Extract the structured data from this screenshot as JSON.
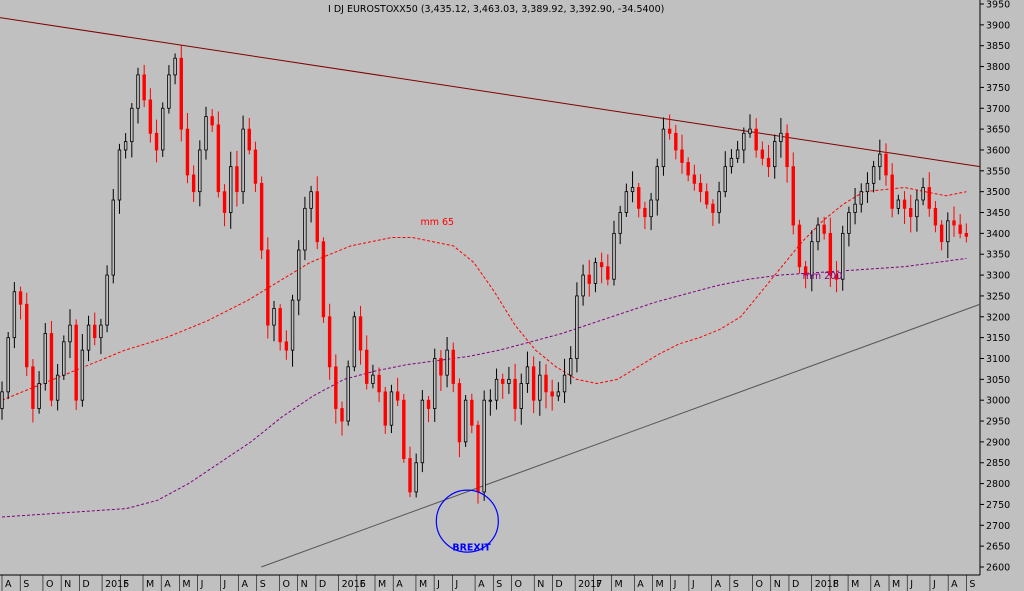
{
  "chart_data": {
    "type": "candlestick",
    "title": "I DJ EUROSTOXX50 (3,435.12, 3,463.03, 3,389.92, 3,392.90, -34.5400)",
    "ylim": [
      2600,
      3950
    ],
    "y_ticks": [
      2600,
      2650,
      2700,
      2750,
      2800,
      2850,
      2900,
      2950,
      3000,
      3050,
      3100,
      3150,
      3200,
      3250,
      3300,
      3350,
      3400,
      3450,
      3500,
      3550,
      3600,
      3650,
      3700,
      3750,
      3800,
      3850,
      3900,
      3950
    ],
    "x_ticks": [
      {
        "label": "A",
        "index": 0
      },
      {
        "label": "S",
        "index": 4
      },
      {
        "label": "O",
        "index": 9
      },
      {
        "label": "N",
        "index": 13
      },
      {
        "label": "D",
        "index": 17
      },
      {
        "label": "2015",
        "index": 22
      },
      {
        "label": "F",
        "index": 26
      },
      {
        "label": "M",
        "index": 31
      },
      {
        "label": "A",
        "index": 35
      },
      {
        "label": "M",
        "index": 39
      },
      {
        "label": "J",
        "index": 43
      },
      {
        "label": "J",
        "index": 48
      },
      {
        "label": "A",
        "index": 52
      },
      {
        "label": "S",
        "index": 56
      },
      {
        "label": "O",
        "index": 61
      },
      {
        "label": "N",
        "index": 65
      },
      {
        "label": "D",
        "index": 69
      },
      {
        "label": "2016",
        "index": 74
      },
      {
        "label": "F",
        "index": 78
      },
      {
        "label": "M",
        "index": 82
      },
      {
        "label": "A",
        "index": 86
      },
      {
        "label": "M",
        "index": 91
      },
      {
        "label": "J",
        "index": 95
      },
      {
        "label": "J",
        "index": 99
      },
      {
        "label": "A",
        "index": 104
      },
      {
        "label": "S",
        "index": 108
      },
      {
        "label": "O",
        "index": 112
      },
      {
        "label": "N",
        "index": 117
      },
      {
        "label": "D",
        "index": 121
      },
      {
        "label": "2017",
        "index": 126
      },
      {
        "label": "F",
        "index": 130
      },
      {
        "label": "M",
        "index": 134
      },
      {
        "label": "A",
        "index": 139
      },
      {
        "label": "M",
        "index": 143
      },
      {
        "label": "J",
        "index": 147
      },
      {
        "label": "J",
        "index": 151
      },
      {
        "label": "A",
        "index": 156
      },
      {
        "label": "S",
        "index": 160
      },
      {
        "label": "O",
        "index": 165
      },
      {
        "label": "N",
        "index": 169
      },
      {
        "label": "D",
        "index": 173
      },
      {
        "label": "2018",
        "index": 178
      },
      {
        "label": "F",
        "index": 182
      },
      {
        "label": "M",
        "index": 186
      },
      {
        "label": "A",
        "index": 191
      },
      {
        "label": "M",
        "index": 195
      },
      {
        "label": "J",
        "index": 199
      },
      {
        "label": "J",
        "index": 204
      },
      {
        "label": "A",
        "index": 208
      },
      {
        "label": "S",
        "index": 212
      }
    ],
    "series": [
      {
        "name": "EUROSTOXX50",
        "values": [
          3020,
          3150,
          3260,
          3230,
          3080,
          2980,
          3040,
          3160,
          3000,
          3060,
          3140,
          3180,
          3000,
          3120,
          3180,
          3150,
          3180,
          3300,
          3480,
          3600,
          3620,
          3700,
          3780,
          3720,
          3640,
          3600,
          3700,
          3780,
          3820,
          3650,
          3540,
          3500,
          3600,
          3680,
          3660,
          3500,
          3450,
          3560,
          3500,
          3650,
          3600,
          3520,
          3360,
          3180,
          3220,
          3140,
          3120,
          3240,
          3360,
          3460,
          3500,
          3380,
          3200,
          3080,
          2980,
          2950,
          3080,
          3200,
          3120,
          3040,
          3060,
          3020,
          2940,
          3020,
          3000,
          2860,
          2780,
          2850,
          3000,
          2980,
          3100,
          3060,
          3120,
          3040,
          2900,
          3000,
          2940,
          2780,
          3000,
          3000,
          3050,
          3040,
          3050,
          2980,
          3040,
          3080,
          3000,
          3060,
          3020,
          3010,
          3020,
          3060,
          3100,
          3250,
          3300,
          3280,
          3330,
          3320,
          3290,
          3400,
          3450,
          3500,
          3510,
          3460,
          3440,
          3480,
          3560,
          3650,
          3640,
          3600,
          3570,
          3540,
          3520,
          3500,
          3470,
          3450,
          3500,
          3560,
          3580,
          3600,
          3640,
          3650,
          3600,
          3580,
          3560,
          3620,
          3640,
          3560,
          3420,
          3320,
          3300,
          3380,
          3420,
          3400,
          3300,
          3290,
          3400,
          3450,
          3470,
          3500,
          3520,
          3560,
          3590,
          3540,
          3460,
          3480,
          3460,
          3440,
          3480,
          3510,
          3460,
          3420,
          3380,
          3430,
          3420,
          3400,
          3392.9
        ]
      },
      {
        "name": "mm 65",
        "values": [
          3000,
          3020,
          3040,
          3060,
          3080,
          3100,
          3120,
          3135,
          3150,
          3170,
          3190,
          3215,
          3240,
          3270,
          3300,
          3330,
          3350,
          3370,
          3380,
          3390,
          3390,
          3380,
          3370,
          3330,
          3260,
          3180,
          3120,
          3080,
          3050,
          3040,
          3050,
          3080,
          3110,
          3135,
          3150,
          3170,
          3200,
          3260,
          3320,
          3380,
          3430,
          3470,
          3500,
          3505,
          3510,
          3500,
          3490,
          3500
        ]
      },
      {
        "name": "mm 200",
        "values": [
          2720,
          2725,
          2730,
          2735,
          2740,
          2760,
          2800,
          2850,
          2900,
          2960,
          3010,
          3050,
          3070,
          3085,
          3095,
          3105,
          3120,
          3140,
          3160,
          3185,
          3210,
          3235,
          3255,
          3275,
          3290,
          3300,
          3305,
          3310,
          3315,
          3320,
          3330,
          3340
        ]
      }
    ],
    "trendlines": [
      {
        "name": "resistance",
        "from": {
          "index": -2,
          "value": 3920
        },
        "to": {
          "index": 215,
          "value": 3560
        }
      },
      {
        "name": "support",
        "from": {
          "index": 57,
          "value": 2600
        },
        "to": {
          "index": 215,
          "value": 3230
        }
      }
    ],
    "annotations": [
      {
        "text": "mm 65",
        "index": 92,
        "value": 3420
      },
      {
        "text": "mm 200",
        "index": 176,
        "value": 3290
      },
      {
        "text": "BREXIT",
        "index": 99,
        "value": 2640
      }
    ],
    "grid": false,
    "colors": {
      "up": "#000000",
      "down": "#ff0000",
      "mm65": "#ff0000",
      "mm200": "#800080",
      "resistance": "#800000",
      "support": "#555555",
      "annotation": "#0000ff",
      "background": "#c0c0c0"
    }
  }
}
